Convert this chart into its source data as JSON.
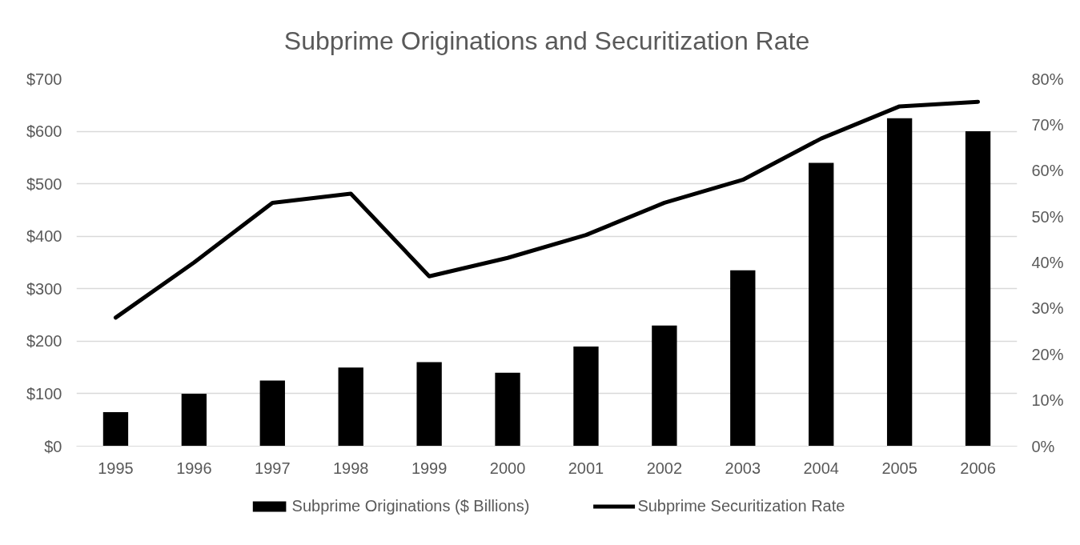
{
  "chart_data": {
    "type": "bar",
    "title": "Subprime Originations and Securitization Rate",
    "categories": [
      "1995",
      "1996",
      "1997",
      "1998",
      "1999",
      "2000",
      "2001",
      "2002",
      "2003",
      "2004",
      "2005",
      "2006"
    ],
    "series": [
      {
        "name": "Subprime Originations ($ Billions)",
        "color": "#000000",
        "values": [
          65,
          100,
          125,
          150,
          160,
          140,
          190,
          230,
          335,
          540,
          625,
          600
        ]
      },
      {
        "name": "Subprime Securitization Rate",
        "type": "line",
        "axis": "y2",
        "color": "#000000",
        "values": [
          28,
          40,
          53,
          55,
          37,
          41,
          46,
          53,
          58,
          67,
          74,
          75
        ]
      }
    ],
    "ylim": [
      0,
      700
    ],
    "yticks": [
      {
        "value": 0,
        "label": "$0"
      },
      {
        "value": 100,
        "label": "$100"
      },
      {
        "value": 200,
        "label": "$200"
      },
      {
        "value": 300,
        "label": "$300"
      },
      {
        "value": 400,
        "label": "$400"
      },
      {
        "value": 500,
        "label": "$500"
      },
      {
        "value": 600,
        "label": "$600"
      },
      {
        "value": 700,
        "label": "$700"
      }
    ],
    "y2lim": [
      0,
      80
    ],
    "y2ticks": [
      {
        "value": 0,
        "label": "0%"
      },
      {
        "value": 10,
        "label": "10%"
      },
      {
        "value": 20,
        "label": "20%"
      },
      {
        "value": 30,
        "label": "30%"
      },
      {
        "value": 40,
        "label": "40%"
      },
      {
        "value": 50,
        "label": "50%"
      },
      {
        "value": 60,
        "label": "60%"
      },
      {
        "value": 70,
        "label": "70%"
      },
      {
        "value": 80,
        "label": "80%"
      }
    ],
    "grid": "y",
    "legend": "bottom"
  }
}
